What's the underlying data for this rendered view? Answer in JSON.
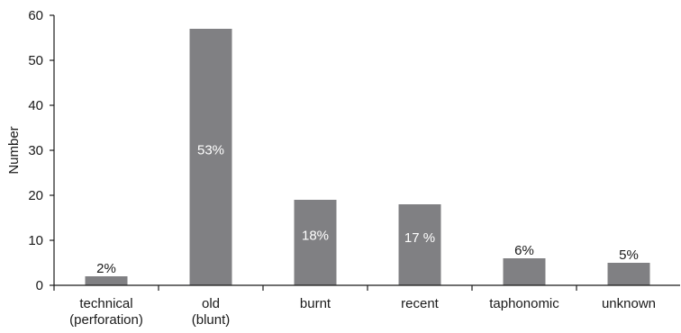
{
  "chart_data": {
    "type": "bar",
    "title": "",
    "xlabel": "",
    "ylabel": "Number",
    "ylim": [
      0,
      60
    ],
    "yticks": [
      0,
      10,
      20,
      30,
      40,
      50,
      60
    ],
    "grid": false,
    "legend": "none",
    "bar_color": "#808083",
    "categories": [
      [
        "technical",
        "(perforation)"
      ],
      [
        "old",
        "(blunt)"
      ],
      [
        "burnt"
      ],
      [
        "recent"
      ],
      [
        "taphonomic"
      ],
      [
        "unknown"
      ]
    ],
    "values": [
      2,
      57,
      19,
      18,
      6,
      5
    ],
    "data_labels": [
      "2%",
      "53%",
      "18%",
      "17 %",
      "6%",
      "5%"
    ]
  }
}
